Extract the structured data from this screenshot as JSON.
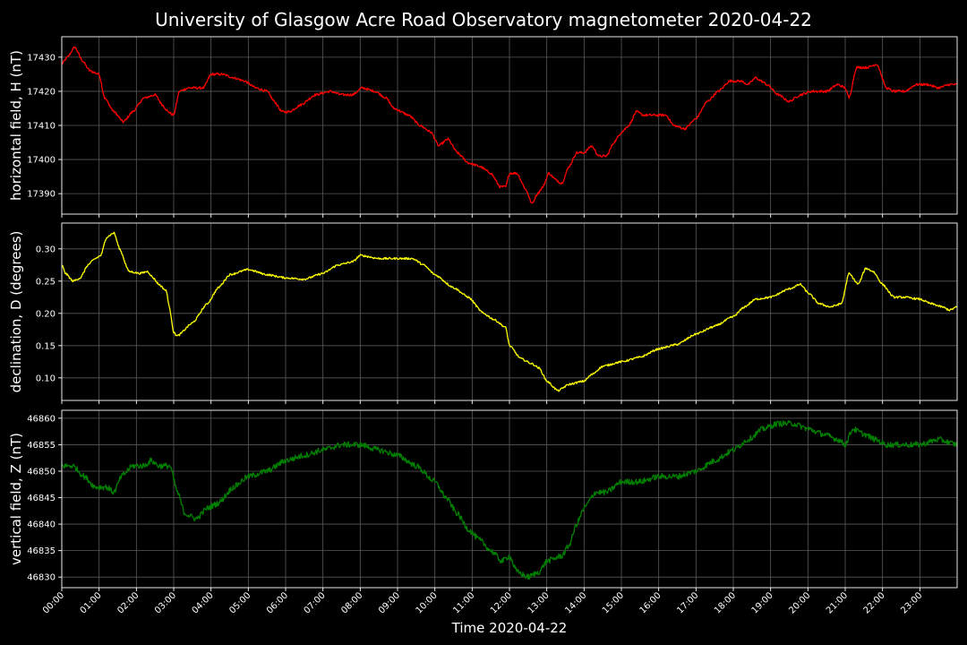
{
  "chart_data": {
    "type": "line",
    "title": "University of Glasgow Acre Road Observatory magnetometer 2020-04-22",
    "xlabel": "Time 2020-04-22",
    "x_range_hours": [
      0,
      24
    ],
    "x_ticks": [
      "00:00",
      "01:00",
      "02:00",
      "03:00",
      "04:00",
      "05:00",
      "06:00",
      "07:00",
      "08:00",
      "09:00",
      "10:00",
      "11:00",
      "12:00",
      "13:00",
      "14:00",
      "15:00",
      "16:00",
      "17:00",
      "18:00",
      "19:00",
      "20:00",
      "21:00",
      "22:00",
      "23:00"
    ],
    "grid": true,
    "background": "#000000",
    "panels": [
      {
        "name": "horizontal",
        "ylabel": "horizontal field, H (nT)",
        "color": "#ff0000",
        "ylim": [
          17384,
          17436
        ],
        "yticks": [
          17390,
          17400,
          17410,
          17420,
          17430
        ],
        "tick_labels": [
          "17390",
          "17400",
          "17410",
          "17420",
          "17430"
        ],
        "noise": 0.35,
        "points": [
          [
            0,
            17428
          ],
          [
            0.15,
            17430
          ],
          [
            0.35,
            17433
          ],
          [
            0.55,
            17429
          ],
          [
            0.75,
            17426
          ],
          [
            1.0,
            17425
          ],
          [
            1.15,
            17418
          ],
          [
            1.4,
            17414
          ],
          [
            1.65,
            17411
          ],
          [
            1.9,
            17414
          ],
          [
            2.2,
            17418
          ],
          [
            2.5,
            17419
          ],
          [
            2.7,
            17416
          ],
          [
            2.85,
            17414
          ],
          [
            3.0,
            17413
          ],
          [
            3.15,
            17420
          ],
          [
            3.4,
            17421
          ],
          [
            3.8,
            17421
          ],
          [
            4.0,
            17425
          ],
          [
            4.3,
            17425
          ],
          [
            4.6,
            17424
          ],
          [
            4.9,
            17423
          ],
          [
            5.2,
            17421
          ],
          [
            5.5,
            17420
          ],
          [
            5.7,
            17417
          ],
          [
            5.9,
            17414
          ],
          [
            6.1,
            17414
          ],
          [
            6.4,
            17416
          ],
          [
            6.8,
            17419
          ],
          [
            7.2,
            17420
          ],
          [
            7.5,
            17419
          ],
          [
            7.8,
            17419
          ],
          [
            8.05,
            17421
          ],
          [
            8.4,
            17420
          ],
          [
            8.7,
            17418
          ],
          [
            8.9,
            17415
          ],
          [
            9.3,
            17413
          ],
          [
            9.6,
            17410
          ],
          [
            9.9,
            17408
          ],
          [
            10.1,
            17404
          ],
          [
            10.35,
            17406
          ],
          [
            10.6,
            17402
          ],
          [
            10.9,
            17399
          ],
          [
            11.2,
            17398
          ],
          [
            11.5,
            17396
          ],
          [
            11.75,
            17392
          ],
          [
            11.9,
            17392
          ],
          [
            12.0,
            17396
          ],
          [
            12.2,
            17396
          ],
          [
            12.45,
            17391
          ],
          [
            12.6,
            17387
          ],
          [
            12.75,
            17390
          ],
          [
            12.9,
            17392
          ],
          [
            13.05,
            17396
          ],
          [
            13.25,
            17394
          ],
          [
            13.4,
            17393
          ],
          [
            13.6,
            17398
          ],
          [
            13.8,
            17402
          ],
          [
            14.0,
            17402
          ],
          [
            14.2,
            17404
          ],
          [
            14.4,
            17401
          ],
          [
            14.6,
            17401
          ],
          [
            14.8,
            17405
          ],
          [
            15.0,
            17408
          ],
          [
            15.2,
            17410
          ],
          [
            15.4,
            17414
          ],
          [
            15.6,
            17413
          ],
          [
            15.9,
            17413
          ],
          [
            16.2,
            17413
          ],
          [
            16.4,
            17410
          ],
          [
            16.7,
            17409
          ],
          [
            17.0,
            17412
          ],
          [
            17.3,
            17417
          ],
          [
            17.6,
            17420
          ],
          [
            17.9,
            17423
          ],
          [
            18.2,
            17423
          ],
          [
            18.4,
            17422
          ],
          [
            18.6,
            17424
          ],
          [
            18.75,
            17423
          ],
          [
            18.9,
            17422
          ],
          [
            19.2,
            17419
          ],
          [
            19.5,
            17417
          ],
          [
            19.8,
            17419
          ],
          [
            20.1,
            17420
          ],
          [
            20.5,
            17420
          ],
          [
            20.8,
            17422
          ],
          [
            21.0,
            17421
          ],
          [
            21.1,
            17418
          ],
          [
            21.3,
            17427
          ],
          [
            21.6,
            17427
          ],
          [
            21.85,
            17428
          ],
          [
            22.1,
            17421
          ],
          [
            22.3,
            17420
          ],
          [
            22.6,
            17420
          ],
          [
            22.9,
            17422
          ],
          [
            23.2,
            17422
          ],
          [
            23.5,
            17421
          ],
          [
            23.8,
            17422
          ],
          [
            24.0,
            17422
          ]
        ]
      },
      {
        "name": "declination",
        "ylabel": "declination, D (degrees)",
        "color": "#ffff00",
        "ylim": [
          0.065,
          0.34
        ],
        "yticks": [
          0.1,
          0.15,
          0.2,
          0.25,
          0.3
        ],
        "tick_labels": [
          "0.10",
          "0.15",
          "0.20",
          "0.25",
          "0.30"
        ],
        "noise": 0.0015,
        "points": [
          [
            0,
            0.275
          ],
          [
            0.1,
            0.262
          ],
          [
            0.3,
            0.25
          ],
          [
            0.5,
            0.255
          ],
          [
            0.7,
            0.275
          ],
          [
            0.9,
            0.285
          ],
          [
            1.05,
            0.29
          ],
          [
            1.2,
            0.318
          ],
          [
            1.4,
            0.325
          ],
          [
            1.55,
            0.3
          ],
          [
            1.8,
            0.265
          ],
          [
            2.1,
            0.262
          ],
          [
            2.3,
            0.265
          ],
          [
            2.45,
            0.255
          ],
          [
            2.6,
            0.245
          ],
          [
            2.8,
            0.235
          ],
          [
            2.9,
            0.205
          ],
          [
            3.0,
            0.17
          ],
          [
            3.1,
            0.165
          ],
          [
            3.5,
            0.185
          ],
          [
            3.9,
            0.215
          ],
          [
            4.2,
            0.24
          ],
          [
            4.5,
            0.26
          ],
          [
            5.0,
            0.268
          ],
          [
            5.5,
            0.26
          ],
          [
            6.0,
            0.255
          ],
          [
            6.5,
            0.253
          ],
          [
            7.0,
            0.262
          ],
          [
            7.4,
            0.275
          ],
          [
            7.8,
            0.28
          ],
          [
            8.0,
            0.29
          ],
          [
            8.5,
            0.285
          ],
          [
            9.0,
            0.285
          ],
          [
            9.4,
            0.285
          ],
          [
            9.7,
            0.275
          ],
          [
            10.0,
            0.26
          ],
          [
            10.5,
            0.24
          ],
          [
            10.9,
            0.225
          ],
          [
            11.3,
            0.2
          ],
          [
            11.6,
            0.19
          ],
          [
            11.9,
            0.178
          ],
          [
            12.0,
            0.15
          ],
          [
            12.3,
            0.13
          ],
          [
            12.6,
            0.122
          ],
          [
            12.8,
            0.115
          ],
          [
            13.0,
            0.095
          ],
          [
            13.3,
            0.08
          ],
          [
            13.6,
            0.09
          ],
          [
            14.0,
            0.095
          ],
          [
            14.2,
            0.105
          ],
          [
            14.5,
            0.118
          ],
          [
            15.0,
            0.125
          ],
          [
            15.5,
            0.132
          ],
          [
            16.0,
            0.145
          ],
          [
            16.5,
            0.152
          ],
          [
            17.0,
            0.168
          ],
          [
            17.5,
            0.18
          ],
          [
            18.0,
            0.195
          ],
          [
            18.3,
            0.21
          ],
          [
            18.6,
            0.222
          ],
          [
            19.0,
            0.225
          ],
          [
            19.5,
            0.238
          ],
          [
            19.8,
            0.245
          ],
          [
            20.0,
            0.232
          ],
          [
            20.3,
            0.215
          ],
          [
            20.6,
            0.21
          ],
          [
            20.9,
            0.215
          ],
          [
            21.1,
            0.262
          ],
          [
            21.35,
            0.245
          ],
          [
            21.55,
            0.27
          ],
          [
            21.75,
            0.265
          ],
          [
            22.0,
            0.245
          ],
          [
            22.3,
            0.225
          ],
          [
            22.6,
            0.225
          ],
          [
            23.0,
            0.222
          ],
          [
            23.3,
            0.215
          ],
          [
            23.6,
            0.21
          ],
          [
            23.8,
            0.205
          ],
          [
            24.0,
            0.21
          ]
        ]
      },
      {
        "name": "vertical",
        "ylabel": "vertical field, Z (nT)",
        "color": "#008000",
        "ylim": [
          46828,
          46861.5
        ],
        "yticks": [
          46830,
          46835,
          46840,
          46845,
          46850,
          46855,
          46860
        ],
        "tick_labels": [
          "46830",
          "46835",
          "46840",
          "46845",
          "46850",
          "46855",
          "46860"
        ],
        "noise": 0.55,
        "points": [
          [
            0,
            46851
          ],
          [
            0.3,
            46851
          ],
          [
            0.6,
            46849
          ],
          [
            0.9,
            46847
          ],
          [
            1.2,
            46847
          ],
          [
            1.4,
            46846
          ],
          [
            1.6,
            46849
          ],
          [
            1.9,
            46851
          ],
          [
            2.2,
            46851
          ],
          [
            2.4,
            46852
          ],
          [
            2.6,
            46851
          ],
          [
            2.9,
            46851
          ],
          [
            3.1,
            46846
          ],
          [
            3.3,
            46842
          ],
          [
            3.6,
            46841
          ],
          [
            3.9,
            46843
          ],
          [
            4.2,
            46844
          ],
          [
            4.6,
            46847
          ],
          [
            5.0,
            46849
          ],
          [
            5.5,
            46850
          ],
          [
            6.0,
            46852
          ],
          [
            6.5,
            46853
          ],
          [
            7.0,
            46854
          ],
          [
            7.5,
            46855
          ],
          [
            8.0,
            46855
          ],
          [
            8.5,
            46854
          ],
          [
            9.0,
            46853
          ],
          [
            9.5,
            46851
          ],
          [
            10.0,
            46848
          ],
          [
            10.3,
            46845
          ],
          [
            10.6,
            46842
          ],
          [
            10.9,
            46839
          ],
          [
            11.2,
            46837
          ],
          [
            11.5,
            46835
          ],
          [
            11.8,
            46833
          ],
          [
            12.0,
            46834
          ],
          [
            12.2,
            46831
          ],
          [
            12.5,
            46830
          ],
          [
            12.8,
            46831
          ],
          [
            13.0,
            46833
          ],
          [
            13.4,
            46834
          ],
          [
            13.6,
            46836
          ],
          [
            13.8,
            46840
          ],
          [
            14.0,
            46843
          ],
          [
            14.3,
            46846
          ],
          [
            14.6,
            46846
          ],
          [
            15.0,
            46848
          ],
          [
            15.5,
            46848
          ],
          [
            16.0,
            46849
          ],
          [
            16.5,
            46849
          ],
          [
            17.0,
            46850
          ],
          [
            17.5,
            46852
          ],
          [
            18.0,
            46854
          ],
          [
            18.4,
            46856
          ],
          [
            18.8,
            46858
          ],
          [
            19.2,
            46859
          ],
          [
            19.6,
            46859
          ],
          [
            20.0,
            46858
          ],
          [
            20.4,
            46857
          ],
          [
            20.8,
            46856
          ],
          [
            21.0,
            46855
          ],
          [
            21.2,
            46858
          ],
          [
            21.5,
            46857
          ],
          [
            21.8,
            46856
          ],
          [
            22.1,
            46855
          ],
          [
            22.5,
            46855
          ],
          [
            23.0,
            46855
          ],
          [
            23.5,
            46856
          ],
          [
            24.0,
            46855
          ]
        ]
      }
    ]
  }
}
